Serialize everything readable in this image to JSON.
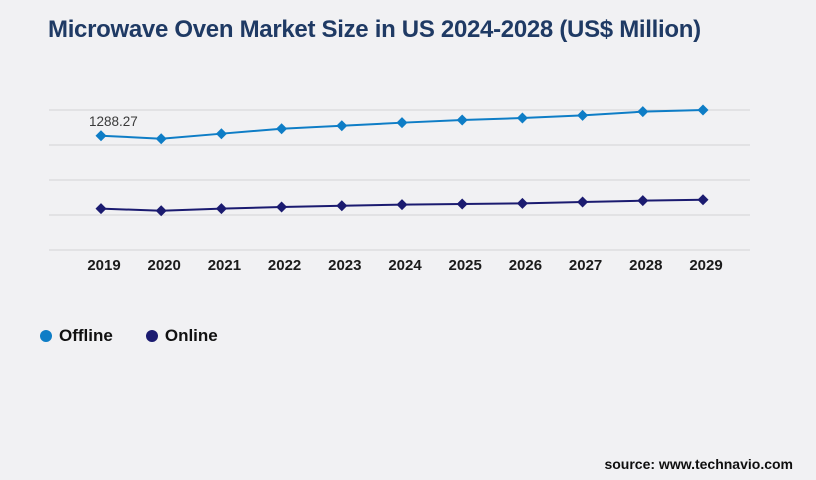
{
  "header": {
    "title": "Microwave Oven Market Size in US 2024-2028 (US$ Million)"
  },
  "chart_data": {
    "type": "line",
    "title": "Microwave Oven Market Size in US 2024-2028 (US$ Million)",
    "categories": [
      "2019",
      "2020",
      "2021",
      "2022",
      "2023",
      "2024",
      "2025",
      "2026",
      "2027",
      "2028",
      "2029"
    ],
    "series": [
      {
        "name": "Offline",
        "color": "#0e7dc6",
        "marker": "diamond",
        "values": [
          1288.27,
          1254.5,
          1311,
          1367,
          1401,
          1435,
          1465,
          1488,
          1518,
          1559,
          1578
        ]
      },
      {
        "name": "Online",
        "color": "#1b1b70",
        "marker": "diamond",
        "values": [
          466,
          443,
          466,
          485,
          499,
          511,
          518,
          526,
          541,
          556,
          567
        ]
      }
    ],
    "point_labels": [
      {
        "series_index": 0,
        "point_index": 0,
        "text": "1288.27"
      }
    ],
    "xlabel": "",
    "ylabel": "",
    "ylim": [
      0,
      1610
    ],
    "grid": "horizontal",
    "gridline_count": 5,
    "legend_position": "bottom-left"
  },
  "legend": {
    "items": [
      {
        "label": "Offline",
        "color": "#0e7dc6"
      },
      {
        "label": "Online",
        "color": "#1b1b70"
      }
    ]
  },
  "footer": {
    "source": "source: www.technavio.com"
  },
  "colors": {
    "background": "#f1f1f3",
    "gridline": "#d2d2d6",
    "title_text": "#1f3a64",
    "axis_text": "#1b1b1b",
    "point_label_text": "#3a3a3a"
  }
}
